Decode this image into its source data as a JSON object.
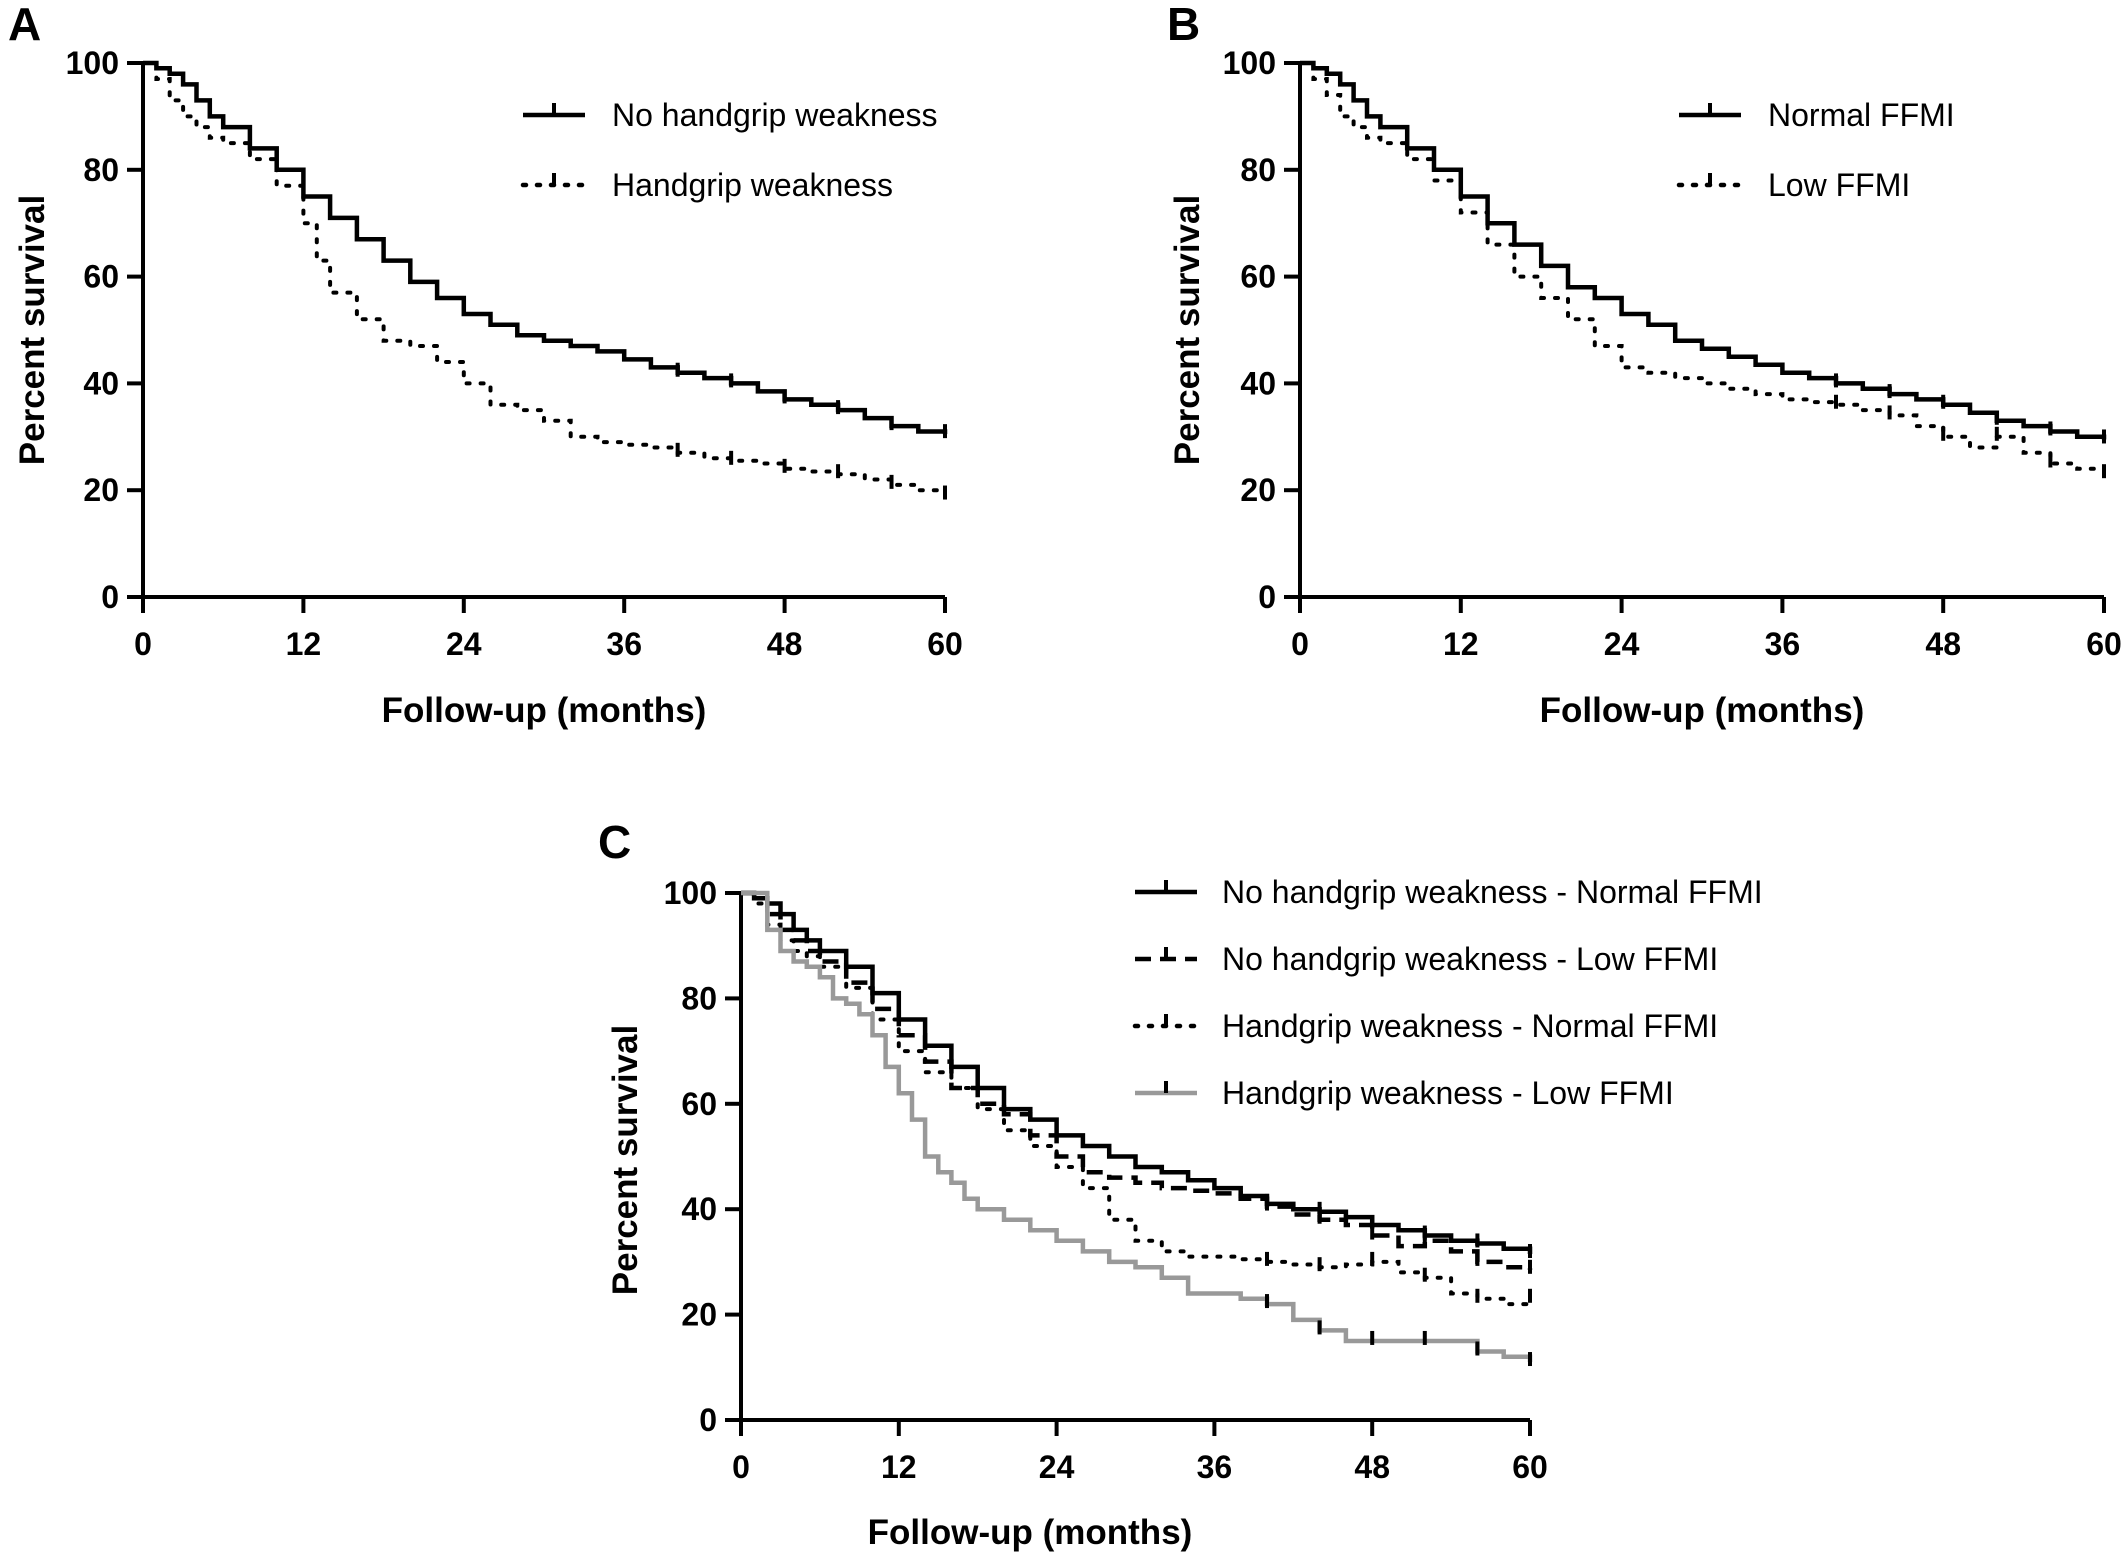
{
  "chart_data": [
    {
      "type": "line",
      "panel_letter": "A",
      "xlabel": "Follow-up (months)",
      "ylabel": "Percent survival",
      "xlim": [
        0,
        60
      ],
      "ylim": [
        0,
        100
      ],
      "xticks": [
        "0",
        "12",
        "24",
        "36",
        "48",
        "60"
      ],
      "yticks": [
        "0",
        "20",
        "40",
        "60",
        "80",
        "100"
      ],
      "legend_position": "top-right",
      "series": [
        {
          "name": "No handgrip weakness",
          "style": "solid",
          "color": "#000000",
          "x": [
            0,
            1,
            2,
            3,
            4,
            5,
            6,
            8,
            10,
            12,
            14,
            16,
            18,
            20,
            22,
            24,
            26,
            28,
            30,
            32,
            34,
            36,
            38,
            40,
            42,
            44,
            46,
            48,
            50,
            52,
            54,
            56,
            58,
            60
          ],
          "y": [
            100,
            99,
            98,
            96,
            93,
            90,
            88,
            84,
            80,
            75,
            71,
            67,
            63,
            59,
            56,
            53,
            51,
            49,
            48,
            47,
            46,
            44.5,
            43,
            42,
            41,
            40,
            38.5,
            37,
            36,
            35,
            33.5,
            32,
            31,
            30.5
          ]
        },
        {
          "name": "Handgrip weakness",
          "style": "dotted",
          "color": "#000000",
          "x": [
            0,
            1,
            2,
            3,
            4,
            5,
            6,
            8,
            10,
            12,
            13,
            14,
            16,
            18,
            20,
            22,
            24,
            26,
            28,
            30,
            32,
            34,
            36,
            38,
            40,
            42,
            44,
            46,
            48,
            50,
            52,
            54,
            56,
            58,
            60
          ],
          "y": [
            100,
            97,
            93,
            90,
            88,
            86,
            85,
            82,
            77,
            70,
            63,
            57,
            52,
            48,
            47,
            44,
            40,
            36,
            35,
            33,
            30,
            29,
            28.5,
            28,
            27,
            26,
            25.5,
            25,
            24,
            23.5,
            23,
            22,
            21,
            20,
            19
          ]
        }
      ]
    },
    {
      "type": "line",
      "panel_letter": "B",
      "xlabel": "Follow-up (months)",
      "ylabel": "Percent survival",
      "xlim": [
        0,
        60
      ],
      "ylim": [
        0,
        100
      ],
      "xticks": [
        "0",
        "12",
        "24",
        "36",
        "48",
        "60"
      ],
      "yticks": [
        "0",
        "20",
        "40",
        "60",
        "80",
        "100"
      ],
      "legend_position": "top-right",
      "series": [
        {
          "name": "Normal FFMI",
          "style": "solid",
          "color": "#000000",
          "x": [
            0,
            1,
            2,
            3,
            4,
            5,
            6,
            8,
            10,
            12,
            14,
            16,
            18,
            20,
            22,
            24,
            26,
            28,
            30,
            32,
            34,
            36,
            38,
            40,
            42,
            44,
            46,
            48,
            50,
            52,
            54,
            56,
            58,
            60
          ],
          "y": [
            100,
            99,
            98,
            96,
            93,
            90,
            88,
            84,
            80,
            75,
            70,
            66,
            62,
            58,
            56,
            53,
            51,
            48,
            46.5,
            45,
            43.5,
            42,
            41,
            40,
            39,
            38,
            37,
            36,
            34.5,
            33,
            32,
            31,
            30,
            29.5
          ]
        },
        {
          "name": "Low FFMI",
          "style": "dotted",
          "color": "#000000",
          "x": [
            0,
            1,
            2,
            3,
            4,
            5,
            6,
            8,
            10,
            12,
            14,
            16,
            18,
            20,
            22,
            24,
            26,
            28,
            30,
            32,
            34,
            36,
            38,
            40,
            42,
            44,
            46,
            48,
            50,
            52,
            54,
            56,
            58,
            60
          ],
          "y": [
            100,
            97,
            94,
            90,
            88,
            86,
            85,
            82,
            78,
            72,
            66,
            60,
            56,
            52,
            47,
            43,
            42,
            41,
            40,
            39,
            38,
            37,
            36.5,
            36,
            35,
            34,
            32,
            30,
            28,
            30,
            27,
            25,
            24,
            23
          ]
        }
      ]
    },
    {
      "type": "line",
      "panel_letter": "C",
      "xlabel": "Follow-up (months)",
      "ylabel": "Percent survival",
      "xlim": [
        0,
        60
      ],
      "ylim": [
        0,
        100
      ],
      "xticks": [
        "0",
        "12",
        "24",
        "36",
        "48",
        "60"
      ],
      "yticks": [
        "0",
        "20",
        "40",
        "60",
        "80",
        "100"
      ],
      "legend_position": "top-right",
      "series": [
        {
          "name": "No handgrip weakness - Normal FFMI",
          "style": "solid",
          "color": "#000000",
          "x": [
            0,
            1,
            2,
            3,
            4,
            5,
            6,
            8,
            10,
            12,
            14,
            16,
            18,
            20,
            22,
            24,
            26,
            28,
            30,
            32,
            34,
            36,
            38,
            40,
            42,
            44,
            46,
            48,
            50,
            52,
            54,
            56,
            58,
            60
          ],
          "y": [
            100,
            99,
            98,
            96,
            93,
            91,
            89,
            86,
            81,
            76,
            71,
            67,
            63,
            59,
            57,
            54,
            52,
            50,
            48,
            47,
            45.5,
            44,
            42.5,
            41,
            40,
            39.5,
            38.5,
            37,
            36,
            35,
            34,
            33.5,
            32.5,
            31.5
          ]
        },
        {
          "name": "No handgrip weakness - Low FFMI",
          "style": "dashed",
          "color": "#000000",
          "x": [
            0,
            1,
            2,
            3,
            4,
            5,
            6,
            8,
            10,
            12,
            14,
            16,
            18,
            20,
            22,
            24,
            26,
            28,
            30,
            32,
            34,
            36,
            38,
            40,
            42,
            44,
            46,
            48,
            50,
            52,
            54,
            56,
            58,
            60
          ],
          "y": [
            100,
            99,
            96,
            93,
            91,
            89,
            87,
            83,
            78,
            73,
            68,
            63,
            60,
            58,
            54,
            50,
            47,
            46,
            45,
            44,
            43.5,
            43,
            42,
            40.5,
            39,
            38,
            37,
            35,
            33,
            34,
            32,
            30,
            29,
            28.5
          ]
        },
        {
          "name": "Handgrip weakness - Normal FFMI",
          "style": "dotted",
          "color": "#000000",
          "x": [
            0,
            1,
            2,
            3,
            4,
            5,
            6,
            8,
            10,
            12,
            14,
            16,
            18,
            20,
            22,
            24,
            26,
            28,
            30,
            32,
            34,
            36,
            38,
            40,
            42,
            44,
            46,
            48,
            50,
            52,
            54,
            56,
            58,
            60
          ],
          "y": [
            100,
            98,
            94,
            91,
            89,
            88,
            86,
            82,
            76,
            70,
            66,
            63,
            59,
            55,
            52,
            48,
            44,
            38,
            34,
            32,
            31,
            31,
            30.5,
            30,
            29.5,
            29,
            29.5,
            30,
            28,
            27,
            24,
            23,
            22,
            23
          ]
        },
        {
          "name": "Handgrip weakness - Low FFMI",
          "style": "solid",
          "color": "#999999",
          "x": [
            0,
            1,
            2,
            3,
            4,
            5,
            6,
            7,
            8,
            9,
            10,
            11,
            12,
            13,
            14,
            15,
            16,
            17,
            18,
            20,
            22,
            24,
            26,
            28,
            30,
            32,
            34,
            36,
            38,
            40,
            42,
            44,
            46,
            48,
            50,
            52,
            54,
            56,
            58,
            60
          ],
          "y": [
            100,
            100,
            93,
            89,
            87,
            86,
            84,
            80,
            79,
            77,
            73,
            67,
            62,
            57,
            50,
            47,
            45,
            42,
            40,
            38,
            36,
            34,
            32,
            30,
            29,
            27,
            24,
            24,
            23,
            22,
            19,
            17,
            15,
            15,
            15,
            15,
            15,
            13,
            12,
            11
          ]
        }
      ]
    }
  ]
}
